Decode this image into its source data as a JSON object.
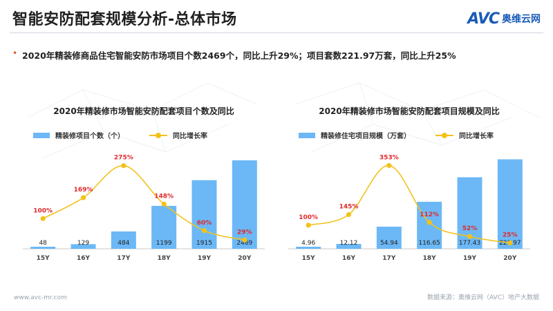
{
  "header": {
    "title": "智能安防配套规模分析-总体市场",
    "logo_text": "AVC",
    "logo_cn": "奥维云网"
  },
  "summary": "2020年精装修商品住宅智能安防市场项目个数2469个，同比上升29%；项目套数221.97万套，同比上升25%",
  "footer": {
    "url": "www.avc-mr.com",
    "source": "数据来源：奥维云网（AVC）地产大数据"
  },
  "colors": {
    "bar": "#6cb8f6",
    "line": "#f2c21a",
    "pct": "#e0292b"
  },
  "chart_data": [
    {
      "type": "bar",
      "title": "2020年精装修市场智能安防配套项目个数及同比",
      "categories": [
        "15Y",
        "16Y",
        "17Y",
        "18Y",
        "19Y",
        "20Y"
      ],
      "series": [
        {
          "name": "精装修项目个数（个）",
          "type": "bar",
          "values": [
            48,
            129,
            484,
            1199,
            1915,
            2469
          ],
          "labels": [
            "48",
            "129",
            "484",
            "1199",
            "1915",
            "2469"
          ]
        },
        {
          "name": "同比增长率",
          "type": "line",
          "values": [
            100,
            169,
            275,
            148,
            60,
            29
          ],
          "labels": [
            "100%",
            "169%",
            "275%",
            "148%",
            "60%",
            "29%"
          ]
        }
      ],
      "ylim": [
        0,
        2700
      ],
      "y2lim": [
        0,
        320
      ]
    },
    {
      "type": "bar",
      "title": "2020年精装修市场智能安防配套项目规模及同比",
      "categories": [
        "15Y",
        "16Y",
        "17Y",
        "18Y",
        "19Y",
        "20Y"
      ],
      "series": [
        {
          "name": "精装修住宅项目规模（万套）",
          "type": "bar",
          "values": [
            4.96,
            12.12,
            54.94,
            116.65,
            177.43,
            221.97
          ],
          "labels": [
            "4.96",
            "12.12",
            "54.94",
            "116.65",
            "177.43",
            "221.97"
          ]
        },
        {
          "name": "同比增长率",
          "type": "line",
          "values": [
            100,
            145,
            353,
            112,
            52,
            25
          ],
          "labels": [
            "100%",
            "145%",
            "353%",
            "112%",
            "52%",
            "25%"
          ]
        }
      ],
      "ylim": [
        0,
        240
      ],
      "y2lim": [
        0,
        410
      ]
    }
  ]
}
